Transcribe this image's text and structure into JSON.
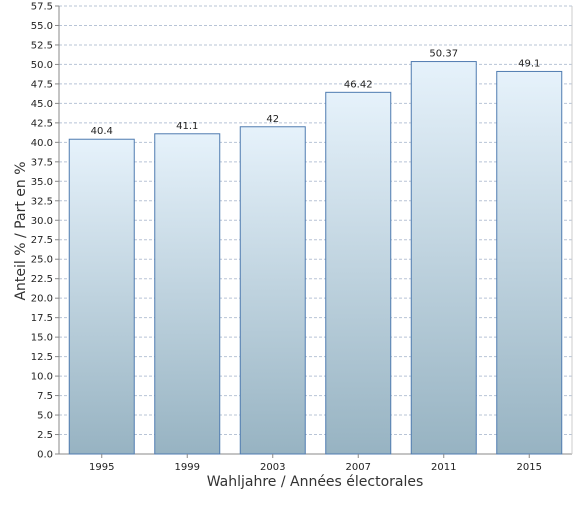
{
  "chart_data": {
    "type": "bar",
    "categories": [
      "1995",
      "1999",
      "2003",
      "2007",
      "2011",
      "2015"
    ],
    "values": [
      40.4,
      41.1,
      42,
      46.42,
      50.37,
      49.1
    ],
    "data_labels": [
      "40.4",
      "41.1",
      "42",
      "46.42",
      "50.37",
      "49.1"
    ],
    "title": "",
    "xlabel": "Wahljahre / Années électorales",
    "ylabel": "Anteil % / Part en %",
    "ylim": [
      0,
      57.5
    ],
    "ytick_step": 2.5,
    "grid": true,
    "legend": "none",
    "colors": {
      "bar_top": "#e6f2fb",
      "bar_bottom": "#97b3c2",
      "bar_border": "#4f7bb0",
      "gridline": "#b8c4d6",
      "axis": "#888888"
    }
  }
}
